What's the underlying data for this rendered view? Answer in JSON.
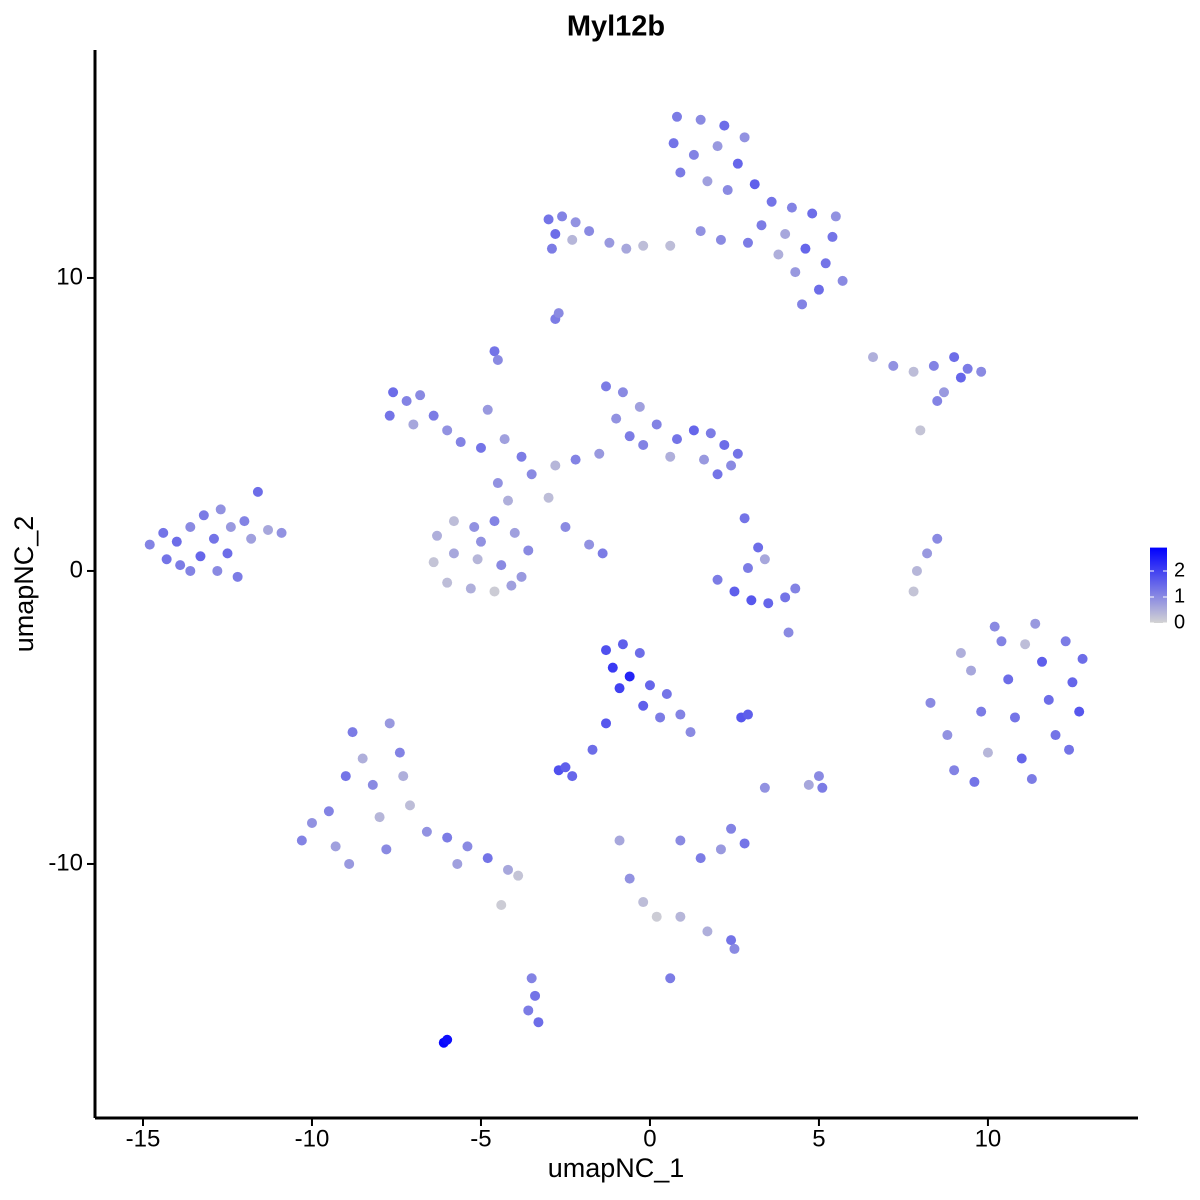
{
  "chart_data": {
    "type": "scatter",
    "title": "Myl12b",
    "x_label": "umapNC_1",
    "y_label": "umapNC_2",
    "xlim": [
      -16.42,
      14.44
    ],
    "ylim": [
      -18.67,
      17.78
    ],
    "xticks": [
      -15,
      -10,
      -5,
      0,
      5,
      10
    ],
    "yticks": [
      -10,
      0,
      10
    ],
    "color_low": "#d3d3d3",
    "color_high": "#0000ff",
    "color_lim": [
      0,
      2.9
    ],
    "color_ticks": [
      0,
      1,
      2
    ],
    "x": [
      0.8,
      1.5,
      2.2,
      2.8,
      0.7,
      1.3,
      2.0,
      2.6,
      0.9,
      1.7,
      2.3,
      3.1,
      3.6,
      4.2,
      4.8,
      5.5,
      3.3,
      4.0,
      4.6,
      5.2,
      5.7,
      5.0,
      4.3,
      4.5,
      3.8,
      2.9,
      1.5,
      0.6,
      2.1,
      5.4,
      -3.0,
      -2.6,
      -2.2,
      -2.8,
      -2.3,
      -1.8,
      -2.9,
      -1.2,
      -0.7,
      -0.2,
      -2.8,
      -2.7,
      -4.6,
      -4.5,
      6.6,
      7.2,
      7.8,
      8.4,
      9.0,
      9.4,
      9.8,
      9.2,
      8.7,
      8.5,
      8.0,
      -7.6,
      -7.2,
      -6.8,
      -7.7,
      -7.0,
      -6.4,
      -6.0,
      -5.6,
      -5.0,
      -4.3,
      -3.8,
      -4.8,
      -4.5,
      -4.2,
      -3.5,
      -2.8,
      -2.2,
      -1.5,
      -3.0,
      -2.5,
      -1.8,
      -1.4,
      -1.3,
      -0.8,
      -0.3,
      0.2,
      0.8,
      1.3,
      1.8,
      2.2,
      2.6,
      2.4,
      1.6,
      0.6,
      -0.2,
      -1.0,
      -0.6,
      2.0,
      -6.3,
      -5.8,
      -5.2,
      -4.6,
      -4.0,
      -3.6,
      -6.4,
      -5.8,
      -5.1,
      -4.4,
      -3.8,
      -6.0,
      -5.3,
      -4.6,
      -4.1,
      -5.0,
      -14.8,
      -14.3,
      -14.0,
      -13.6,
      -13.2,
      -12.7,
      -13.9,
      -13.3,
      -12.9,
      -12.4,
      -12.0,
      -11.6,
      -11.3,
      -10.9,
      -12.8,
      -12.2,
      -14.4,
      -13.6,
      -12.5,
      -11.8,
      2.0,
      2.5,
      3.0,
      3.5,
      4.0,
      4.3,
      3.2,
      3.4,
      2.9,
      2.8,
      4.1,
      8.5,
      8.2,
      7.9,
      7.8,
      8.3,
      8.8,
      9.0,
      9.6,
      9.5,
      9.8,
      10.0,
      10.4,
      10.6,
      10.8,
      11.0,
      11.3,
      11.4,
      11.6,
      11.8,
      12.0,
      12.3,
      12.5,
      12.7,
      12.4,
      9.2,
      10.2,
      11.1,
      12.8,
      5.0,
      5.1,
      3.4,
      4.7,
      -1.3,
      -0.8,
      -0.3,
      -1.1,
      -0.6,
      0.0,
      0.5,
      0.9,
      1.2,
      -0.9,
      -0.2,
      0.3,
      -1.3,
      -1.7,
      -2.7,
      -2.3,
      -2.5,
      2.7,
      2.9,
      -10.0,
      -9.5,
      -9.3,
      -8.8,
      -8.5,
      -8.2,
      -9.0,
      -8.0,
      -7.7,
      -7.4,
      -7.8,
      -7.1,
      -6.6,
      -6.0,
      -5.4,
      -4.8,
      -4.2,
      -3.9,
      -10.3,
      -8.9,
      -7.3,
      -5.7,
      -4.4,
      0.9,
      1.5,
      2.1,
      2.4,
      2.8,
      -0.9,
      -0.6,
      -0.2,
      0.2,
      0.9,
      1.7,
      2.4,
      2.5,
      0.6,
      -3.5,
      -3.4,
      -3.6,
      -3.3,
      -6.1,
      -6.0
    ],
    "y": [
      15.5,
      15.4,
      15.2,
      14.8,
      14.6,
      14.2,
      14.5,
      13.9,
      13.6,
      13.3,
      13.0,
      13.2,
      12.6,
      12.4,
      12.2,
      12.1,
      11.8,
      11.5,
      11.0,
      10.5,
      9.9,
      9.6,
      10.2,
      9.1,
      10.8,
      11.2,
      11.6,
      11.1,
      11.3,
      11.4,
      12.0,
      12.1,
      11.9,
      11.5,
      11.3,
      11.6,
      11.0,
      11.2,
      11.0,
      11.1,
      8.6,
      8.8,
      7.5,
      7.2,
      7.3,
      7.0,
      6.8,
      7.0,
      7.3,
      6.9,
      6.8,
      6.6,
      6.1,
      5.8,
      4.8,
      6.1,
      5.8,
      6.0,
      5.3,
      5.0,
      5.3,
      4.8,
      4.4,
      4.2,
      4.5,
      3.9,
      5.5,
      3.0,
      2.4,
      3.3,
      3.6,
      3.8,
      4.0,
      2.5,
      1.5,
      0.9,
      0.6,
      6.3,
      6.1,
      5.6,
      5.0,
      4.5,
      4.8,
      4.7,
      4.3,
      4.0,
      3.6,
      3.8,
      3.9,
      4.3,
      5.2,
      4.6,
      3.3,
      1.2,
      1.7,
      1.5,
      1.7,
      1.3,
      0.7,
      0.3,
      0.6,
      0.4,
      0.2,
      -0.2,
      -0.4,
      -0.6,
      -0.7,
      -0.5,
      1.0,
      0.9,
      0.4,
      1.0,
      1.5,
      1.9,
      2.1,
      0.2,
      0.5,
      1.1,
      1.5,
      1.7,
      2.7,
      1.4,
      1.3,
      0.0,
      -0.2,
      1.3,
      0.0,
      0.6,
      1.1,
      -0.3,
      -0.7,
      -1.0,
      -1.1,
      -0.9,
      -0.6,
      0.8,
      0.4,
      0.1,
      1.8,
      -2.1,
      1.1,
      0.6,
      0.0,
      -0.7,
      -4.5,
      -5.6,
      -6.8,
      -7.2,
      -3.4,
      -4.8,
      -6.2,
      -2.4,
      -3.7,
      -5.0,
      -6.4,
      -7.1,
      -1.8,
      -3.1,
      -4.4,
      -5.6,
      -2.4,
      -3.8,
      -4.8,
      -6.1,
      -2.8,
      -1.9,
      -2.5,
      -3.0,
      -7.0,
      -7.4,
      -7.4,
      -7.3,
      -2.7,
      -2.5,
      -2.8,
      -3.3,
      -3.6,
      -3.9,
      -4.2,
      -4.9,
      -5.5,
      -4.0,
      -4.6,
      -5.0,
      -5.2,
      -6.1,
      -6.8,
      -7.0,
      -6.7,
      -5.0,
      -4.9,
      -8.6,
      -8.2,
      -9.4,
      -5.5,
      -6.4,
      -7.3,
      -7.0,
      -8.4,
      -5.2,
      -6.2,
      -9.5,
      -8.0,
      -8.9,
      -9.1,
      -9.4,
      -9.8,
      -10.2,
      -10.4,
      -9.2,
      -10.0,
      -7.0,
      -10.0,
      -11.4,
      -9.2,
      -9.8,
      -9.5,
      -8.8,
      -9.3,
      -9.2,
      -10.5,
      -11.3,
      -11.8,
      -11.8,
      -12.3,
      -12.6,
      -12.9,
      -13.9,
      -13.9,
      -14.5,
      -15.0,
      -15.4,
      -16.1,
      -16.0
    ],
    "values": [
      1.2,
      1.0,
      1.4,
      0.9,
      1.3,
      1.1,
      0.8,
      1.5,
      1.2,
      0.7,
      1.0,
      1.6,
      1.3,
      1.1,
      1.4,
      0.9,
      1.2,
      0.6,
      1.5,
      1.3,
      1.0,
      1.4,
      0.8,
      1.1,
      0.5,
      1.2,
      0.9,
      0.3,
      1.0,
      1.3,
      1.3,
      1.1,
      0.9,
      1.4,
      0.4,
      1.0,
      1.2,
      0.8,
      0.6,
      0.3,
      1.2,
      1.0,
      1.3,
      1.0,
      0.5,
      0.9,
      0.3,
      1.1,
      1.4,
      1.2,
      1.0,
      1.5,
      0.8,
      1.1,
      0.2,
      1.4,
      1.1,
      1.0,
      1.3,
      0.6,
      1.2,
      0.9,
      1.1,
      1.3,
      0.7,
      1.2,
      0.8,
      0.9,
      0.5,
      1.0,
      0.4,
      1.1,
      0.8,
      0.3,
      1.0,
      0.9,
      1.2,
      1.2,
      1.0,
      0.7,
      1.1,
      1.3,
      1.5,
      1.2,
      1.4,
      1.3,
      1.0,
      0.8,
      0.5,
      1.1,
      0.9,
      1.2,
      1.3,
      0.5,
      0.3,
      0.9,
      1.1,
      0.7,
      1.0,
      0.2,
      0.6,
      0.4,
      1.0,
      0.8,
      0.3,
      0.5,
      0.1,
      0.7,
      0.9,
      1.1,
      1.3,
      1.4,
      1.0,
      1.2,
      0.9,
      1.2,
      1.5,
      1.3,
      0.8,
      1.1,
      1.4,
      0.6,
      0.9,
      1.0,
      1.2,
      1.3,
      1.1,
      1.4,
      0.7,
      1.2,
      1.6,
      1.7,
      1.5,
      1.3,
      1.1,
      1.4,
      0.6,
      1.2,
      1.3,
      1.0,
      1.0,
      0.8,
      0.4,
      0.2,
      1.0,
      0.9,
      1.1,
      1.3,
      0.6,
      1.2,
      0.4,
      1.1,
      1.4,
      1.3,
      1.5,
      1.2,
      0.8,
      1.6,
      1.4,
      1.3,
      1.2,
      1.5,
      1.7,
      1.3,
      0.5,
      1.0,
      0.3,
      1.4,
      1.0,
      1.2,
      0.9,
      0.6,
      1.8,
      1.6,
      1.4,
      2.1,
      2.4,
      1.5,
      1.3,
      1.1,
      1.0,
      2.0,
      1.6,
      1.2,
      1.7,
      1.4,
      1.8,
      1.5,
      1.6,
      1.7,
      1.6,
      0.9,
      1.1,
      0.7,
      1.2,
      0.5,
      1.0,
      1.3,
      0.4,
      0.8,
      1.1,
      1.0,
      0.3,
      0.9,
      1.2,
      1.0,
      1.3,
      0.6,
      0.2,
      1.1,
      0.8,
      0.5,
      0.7,
      0.1,
      1.0,
      1.2,
      0.8,
      1.1,
      1.3,
      0.6,
      0.9,
      0.3,
      0.1,
      0.4,
      0.5,
      1.3,
      1.0,
      1.2,
      1.1,
      1.3,
      1.2,
      1.4,
      2.8,
      2.7
    ]
  }
}
